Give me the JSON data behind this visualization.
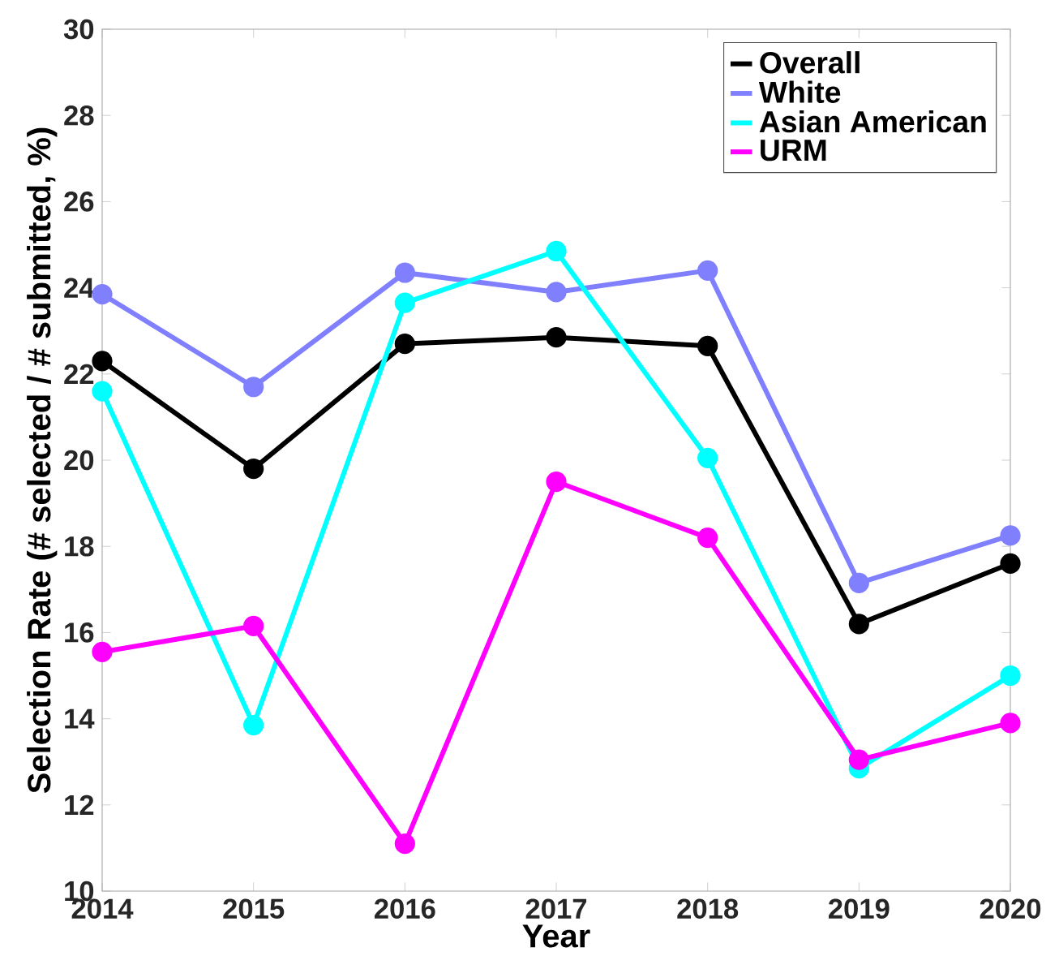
{
  "chart_data": {
    "type": "line",
    "xlabel": "Year",
    "ylabel": "Selection Rate (# selected / # submitted, %)",
    "x": [
      2014,
      2015,
      2016,
      2017,
      2018,
      2019,
      2020
    ],
    "xlim": [
      2014,
      2020
    ],
    "xticks": [
      2014,
      2015,
      2016,
      2017,
      2018,
      2019,
      2020
    ],
    "ylim": [
      10,
      30
    ],
    "yticks": [
      10,
      12,
      14,
      16,
      18,
      20,
      22,
      24,
      26,
      28,
      30
    ],
    "grid": false,
    "legend": "top right",
    "marker": "circle",
    "line_style": "solid",
    "series": [
      {
        "name": "Overall",
        "color": "#000000",
        "values": [
          22.3,
          19.8,
          22.7,
          22.85,
          22.65,
          16.2,
          17.6
        ]
      },
      {
        "name": "White",
        "color": "#8080ff",
        "values": [
          23.85,
          21.7,
          24.35,
          23.9,
          24.4,
          17.15,
          18.25
        ]
      },
      {
        "name": "Asian American",
        "color": "#00ffff",
        "values": [
          21.6,
          13.85,
          23.65,
          24.85,
          20.05,
          12.85,
          15.0
        ]
      },
      {
        "name": "URM",
        "color": "#ff00ff",
        "values": [
          15.55,
          16.15,
          11.1,
          19.5,
          18.2,
          13.05,
          13.9
        ]
      }
    ]
  }
}
